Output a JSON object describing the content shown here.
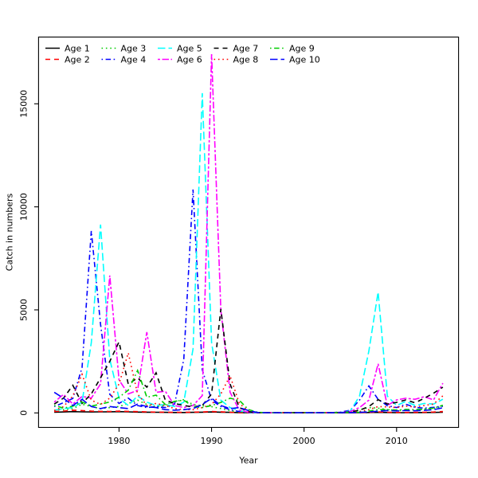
{
  "figure": {
    "background": "#ffffff",
    "axis_color": "#000000",
    "text_color": "#000000"
  },
  "chart_data": {
    "type": "line",
    "title": "",
    "xlabel": "Year",
    "ylabel": "Catch in numbers",
    "x_ticks": [
      1980,
      1990,
      2000,
      2010
    ],
    "y_ticks": [
      0,
      5000,
      10000,
      15000
    ],
    "xlim": [
      1971.3,
      2016.7
    ],
    "ylim": [
      -704,
      18240
    ],
    "grid": false,
    "legend_position": "top-left",
    "legend_columns": 5,
    "x": [
      1973,
      1974,
      1975,
      1976,
      1977,
      1978,
      1979,
      1980,
      1981,
      1982,
      1983,
      1984,
      1985,
      1986,
      1987,
      1988,
      1989,
      1990,
      1991,
      1992,
      1993,
      1994,
      1995,
      1996,
      1997,
      1998,
      1999,
      2000,
      2001,
      2002,
      2003,
      2004,
      2005,
      2006,
      2007,
      2008,
      2009,
      2010,
      2011,
      2012,
      2013,
      2014,
      2015
    ],
    "series": [
      {
        "name": "Age 1",
        "color": "#000000",
        "linestyle": "solid",
        "values": [
          30,
          45,
          60,
          50,
          45,
          50,
          55,
          60,
          50,
          40,
          35,
          30,
          25,
          20,
          20,
          25,
          35,
          45,
          35,
          25,
          15,
          8,
          5,
          5,
          5,
          5,
          5,
          5,
          5,
          5,
          5,
          5,
          8,
          12,
          18,
          25,
          18,
          12,
          12,
          14,
          18,
          22,
          30
        ]
      },
      {
        "name": "Age 2",
        "color": "#FF0000",
        "linestyle": "dashed",
        "values": [
          70,
          90,
          130,
          110,
          85,
          75,
          70,
          85,
          75,
          60,
          50,
          40,
          32,
          28,
          28,
          35,
          45,
          65,
          55,
          32,
          16,
          8,
          5,
          5,
          5,
          5,
          5,
          5,
          5,
          5,
          5,
          8,
          12,
          18,
          28,
          45,
          32,
          22,
          22,
          26,
          32,
          42,
          65
        ]
      },
      {
        "name": "Age 3",
        "color": "#00CD00",
        "linestyle": "dotted",
        "values": [
          130,
          160,
          210,
          420,
          310,
          210,
          260,
          310,
          460,
          620,
          410,
          300,
          360,
          550,
          640,
          410,
          350,
          300,
          210,
          110,
          50,
          20,
          10,
          10,
          10,
          10,
          10,
          10,
          10,
          10,
          15,
          25,
          60,
          150,
          260,
          230,
          160,
          120,
          130,
          150,
          170,
          210,
          320
        ]
      },
      {
        "name": "Age 4",
        "color": "#0000FF",
        "linestyle": "dotdash",
        "values": [
          310,
          500,
          700,
          2200,
          8830,
          4300,
          900,
          460,
          720,
          360,
          260,
          300,
          260,
          420,
          2600,
          10840,
          2100,
          620,
          310,
          160,
          60,
          20,
          10,
          10,
          10,
          10,
          10,
          10,
          10,
          10,
          15,
          40,
          130,
          620,
          1310,
          660,
          350,
          260,
          420,
          270,
          230,
          270,
          330
        ]
      },
      {
        "name": "Age 5",
        "color": "#00FFFF",
        "linestyle": "longdash",
        "values": [
          130,
          210,
          260,
          520,
          3400,
          9140,
          2600,
          720,
          360,
          820,
          520,
          360,
          410,
          310,
          520,
          3100,
          15520,
          3400,
          620,
          260,
          110,
          30,
          10,
          10,
          10,
          10,
          10,
          10,
          10,
          10,
          15,
          30,
          90,
          820,
          3000,
          5870,
          820,
          360,
          560,
          360,
          460,
          430,
          660
        ]
      },
      {
        "name": "Age 6",
        "color": "#FF00FF",
        "linestyle": "twodash",
        "values": [
          520,
          900,
          430,
          800,
          720,
          1400,
          6670,
          1600,
          920,
          1100,
          3920,
          1000,
          1050,
          360,
          260,
          360,
          840,
          17410,
          5000,
          1000,
          130,
          30,
          10,
          10,
          10,
          10,
          10,
          10,
          10,
          10,
          15,
          25,
          70,
          260,
          620,
          2380,
          360,
          630,
          710,
          660,
          790,
          630,
          1440
        ]
      },
      {
        "name": "Age 7",
        "color": "#000000",
        "linestyle": "dashed",
        "values": [
          430,
          720,
          1340,
          460,
          920,
          1700,
          2500,
          3450,
          1400,
          1700,
          1250,
          1950,
          620,
          460,
          360,
          290,
          360,
          920,
          5040,
          1400,
          260,
          60,
          15,
          10,
          10,
          10,
          10,
          10,
          10,
          10,
          15,
          20,
          45,
          130,
          310,
          640,
          430,
          510,
          630,
          490,
          710,
          960,
          1250
        ]
      },
      {
        "name": "Age 8",
        "color": "#FF0000",
        "linestyle": "dotted",
        "values": [
          110,
          310,
          820,
          1870,
          620,
          410,
          720,
          1400,
          2910,
          920,
          360,
          460,
          360,
          210,
          160,
          160,
          260,
          410,
          920,
          1800,
          460,
          90,
          15,
          10,
          10,
          10,
          10,
          10,
          10,
          10,
          10,
          15,
          25,
          65,
          160,
          310,
          290,
          260,
          330,
          290,
          360,
          430,
          830
        ]
      },
      {
        "name": "Age 9",
        "color": "#00CD00",
        "linestyle": "dotdash",
        "values": [
          360,
          230,
          330,
          530,
          330,
          430,
          530,
          760,
          1100,
          2060,
          760,
          860,
          410,
          560,
          620,
          310,
          260,
          360,
          510,
          710,
          610,
          160,
          30,
          10,
          10,
          10,
          10,
          10,
          10,
          10,
          10,
          15,
          20,
          35,
          85,
          160,
          160,
          140,
          170,
          160,
          190,
          230,
          370
        ]
      },
      {
        "name": "Age 10",
        "color": "#0000FF",
        "linestyle": "longdash",
        "values": [
          1000,
          710,
          360,
          660,
          310,
          210,
          310,
          260,
          210,
          430,
          310,
          260,
          160,
          130,
          160,
          210,
          410,
          710,
          360,
          210,
          260,
          110,
          20,
          10,
          10,
          10,
          10,
          10,
          10,
          10,
          10,
          12,
          15,
          25,
          45,
          85,
          110,
          95,
          115,
          105,
          125,
          155,
          250
        ]
      }
    ]
  }
}
